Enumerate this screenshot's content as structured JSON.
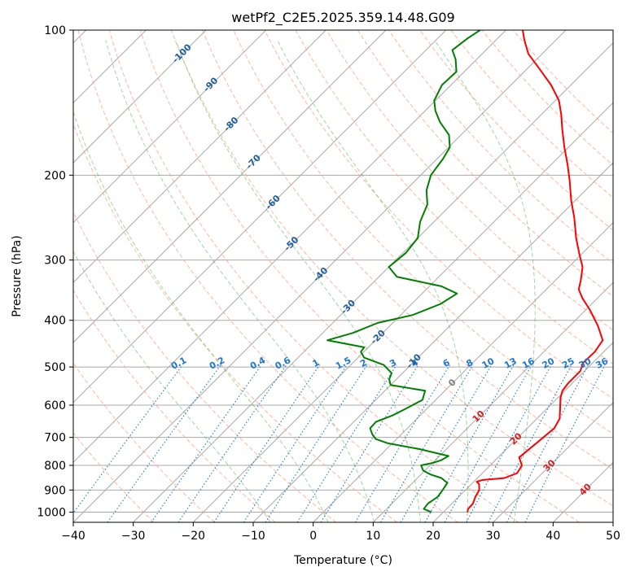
{
  "chart_data": {
    "type": "line",
    "subtype": "skew-t log-p diagram",
    "title": "wetPf2_C2E5.2025.359.14.48.G09",
    "xlabel": "Temperature (°C)",
    "ylabel": "Pressure (hPa)",
    "xlim": [
      -40,
      50
    ],
    "ylim": [
      1050,
      100
    ],
    "x_ticks": [
      -40,
      -30,
      -20,
      -10,
      0,
      10,
      20,
      30,
      40,
      50
    ],
    "x_tick_labels": [
      "−40",
      "−30",
      "−20",
      "−10",
      "0",
      "10",
      "20",
      "30",
      "40",
      "50"
    ],
    "y_ticks": [
      100,
      200,
      300,
      400,
      500,
      600,
      700,
      800,
      900,
      1000
    ],
    "y_tick_labels": [
      "100",
      "200",
      "300",
      "400",
      "500",
      "600",
      "700",
      "800",
      "900",
      "1000"
    ],
    "grid": true,
    "colors": {
      "temperature": "#ff0000",
      "dewpoint": "#008000",
      "dry_adiabat": "#ff9f80",
      "moist_adiabat": "#3fb040",
      "mixing_ratio": "#1f77d4",
      "isotherm": "#808080",
      "hgz": "#a0c0e8"
    },
    "series": [
      {
        "name": "Temperature",
        "color": "#ff0000",
        "points": [
          {
            "p": 1000,
            "t": 24.0
          },
          {
            "p": 985,
            "t": 23.6
          },
          {
            "p": 960,
            "t": 23.5
          },
          {
            "p": 930,
            "t": 22.8
          },
          {
            "p": 900,
            "t": 22.3
          },
          {
            "p": 875,
            "t": 21.3
          },
          {
            "p": 865,
            "t": 20.5
          },
          {
            "p": 858,
            "t": 21.1
          },
          {
            "p": 850,
            "t": 24.5
          },
          {
            "p": 830,
            "t": 25.8
          },
          {
            "p": 800,
            "t": 25.3
          },
          {
            "p": 770,
            "t": 23.5
          },
          {
            "p": 750,
            "t": 23.7
          },
          {
            "p": 720,
            "t": 24.0
          },
          {
            "p": 700,
            "t": 24.2
          },
          {
            "p": 670,
            "t": 24.5
          },
          {
            "p": 640,
            "t": 23.8
          },
          {
            "p": 610,
            "t": 22.2
          },
          {
            "p": 580,
            "t": 20.5
          },
          {
            "p": 560,
            "t": 19.6
          },
          {
            "p": 540,
            "t": 19.3
          },
          {
            "p": 510,
            "t": 19.3
          },
          {
            "p": 490,
            "t": 18.4
          },
          {
            "p": 465,
            "t": 18.5
          },
          {
            "p": 440,
            "t": 17.9
          },
          {
            "p": 410,
            "t": 14.6
          },
          {
            "p": 380,
            "t": 10.6
          },
          {
            "p": 360,
            "t": 7.5
          },
          {
            "p": 345,
            "t": 5.4
          },
          {
            "p": 330,
            "t": 4.2
          },
          {
            "p": 310,
            "t": 2.3
          },
          {
            "p": 290,
            "t": -0.6
          },
          {
            "p": 270,
            "t": -3.6
          },
          {
            "p": 245,
            "t": -7.3
          },
          {
            "p": 225,
            "t": -10.8
          },
          {
            "p": 205,
            "t": -14.3
          },
          {
            "p": 190,
            "t": -17.3
          },
          {
            "p": 175,
            "t": -20.7
          },
          {
            "p": 160,
            "t": -24.2
          },
          {
            "p": 150,
            "t": -26.6
          },
          {
            "p": 140,
            "t": -29.4
          },
          {
            "p": 130,
            "t": -33.3
          },
          {
            "p": 121,
            "t": -37.6
          },
          {
            "p": 112,
            "t": -42.3
          },
          {
            "p": 105,
            "t": -45.2
          },
          {
            "p": 100,
            "t": -47.2
          }
        ]
      },
      {
        "name": "Dewpoint",
        "color": "#008000",
        "points": [
          {
            "p": 1000,
            "t": 18.0
          },
          {
            "p": 985,
            "t": 16.2
          },
          {
            "p": 960,
            "t": 16.0
          },
          {
            "p": 930,
            "t": 16.5
          },
          {
            "p": 900,
            "t": 16.2
          },
          {
            "p": 870,
            "t": 15.8
          },
          {
            "p": 850,
            "t": 14.0
          },
          {
            "p": 835,
            "t": 11.5
          },
          {
            "p": 820,
            "t": 9.7
          },
          {
            "p": 800,
            "t": 8.5
          },
          {
            "p": 790,
            "t": 10.1
          },
          {
            "p": 780,
            "t": 11.0
          },
          {
            "p": 765,
            "t": 11.5
          },
          {
            "p": 740,
            "t": 5.5
          },
          {
            "p": 720,
            "t": -0.7
          },
          {
            "p": 705,
            "t": -3.5
          },
          {
            "p": 690,
            "t": -4.8
          },
          {
            "p": 670,
            "t": -6.2
          },
          {
            "p": 650,
            "t": -6.3
          },
          {
            "p": 630,
            "t": -4.6
          },
          {
            "p": 610,
            "t": -3.5
          },
          {
            "p": 585,
            "t": -2.2
          },
          {
            "p": 560,
            "t": -3.3
          },
          {
            "p": 545,
            "t": -10.0
          },
          {
            "p": 530,
            "t": -11.2
          },
          {
            "p": 515,
            "t": -11.8
          },
          {
            "p": 495,
            "t": -14.5
          },
          {
            "p": 478,
            "t": -19.0
          },
          {
            "p": 465,
            "t": -20.5
          },
          {
            "p": 455,
            "t": -20.7
          },
          {
            "p": 440,
            "t": -28.0
          },
          {
            "p": 425,
            "t": -25.0
          },
          {
            "p": 405,
            "t": -22.5
          },
          {
            "p": 390,
            "t": -18.0
          },
          {
            "p": 370,
            "t": -15.2
          },
          {
            "p": 352,
            "t": -14.2
          },
          {
            "p": 340,
            "t": -18.0
          },
          {
            "p": 325,
            "t": -27.0
          },
          {
            "p": 310,
            "t": -30.0
          },
          {
            "p": 290,
            "t": -29.5
          },
          {
            "p": 270,
            "t": -30.0
          },
          {
            "p": 250,
            "t": -32.3
          },
          {
            "p": 230,
            "t": -34.0
          },
          {
            "p": 215,
            "t": -36.5
          },
          {
            "p": 200,
            "t": -38.3
          },
          {
            "p": 185,
            "t": -39.0
          },
          {
            "p": 175,
            "t": -39.8
          },
          {
            "p": 165,
            "t": -42.0
          },
          {
            "p": 155,
            "t": -45.7
          },
          {
            "p": 147,
            "t": -48.3
          },
          {
            "p": 140,
            "t": -50.2
          },
          {
            "p": 130,
            "t": -51.5
          },
          {
            "p": 122,
            "t": -51.3
          },
          {
            "p": 115,
            "t": -53.5
          },
          {
            "p": 110,
            "t": -55.6
          },
          {
            "p": 104,
            "t": -55.0
          },
          {
            "p": 100,
            "t": -54.3
          }
        ]
      }
    ],
    "dry_adiabats_c": [
      -30,
      -20,
      -10,
      0,
      10,
      20,
      30,
      40,
      50,
      60,
      70,
      80,
      90,
      100,
      110,
      120,
      130,
      140,
      150,
      160
    ],
    "moist_adiabats_c": [
      -10,
      0,
      8,
      16,
      24,
      32
    ],
    "mixing_ratio_lines": [
      0.1,
      0.2,
      0.4,
      0.6,
      1,
      1.5,
      2,
      3,
      4,
      6,
      8,
      10,
      13,
      16,
      20,
      25,
      30,
      36
    ],
    "mixing_ratio_labels": [
      "0.1",
      "0.2",
      "0.4",
      "0.6",
      "1",
      "1.5",
      "2",
      "3",
      "4",
      "6",
      "8",
      "10",
      "13",
      "16",
      "20",
      "25",
      "30",
      "36"
    ],
    "isotherm_labels": [
      {
        "text": "-100",
        "t": -100,
        "p": 112
      },
      {
        "text": "-90",
        "t": -90,
        "p": 130
      },
      {
        "text": "-80",
        "t": -80,
        "p": 157
      },
      {
        "text": "-70",
        "t": -70,
        "p": 188
      },
      {
        "text": "-60",
        "t": -60,
        "p": 228
      },
      {
        "text": "-50",
        "t": -50,
        "p": 278
      },
      {
        "text": "-40",
        "t": -40,
        "p": 322
      },
      {
        "text": "-30",
        "t": -30,
        "p": 376
      },
      {
        "text": "-20",
        "t": -20,
        "p": 434
      },
      {
        "text": "-10",
        "t": -10,
        "p": 487
      },
      {
        "text": "0",
        "t": 0,
        "p": 540
      },
      {
        "text": "10",
        "t": 10,
        "p": 634
      },
      {
        "text": "20",
        "t": 20,
        "p": 706
      },
      {
        "text": "30",
        "t": 30,
        "p": 802
      },
      {
        "text": "40",
        "t": 40,
        "p": 899
      }
    ]
  }
}
